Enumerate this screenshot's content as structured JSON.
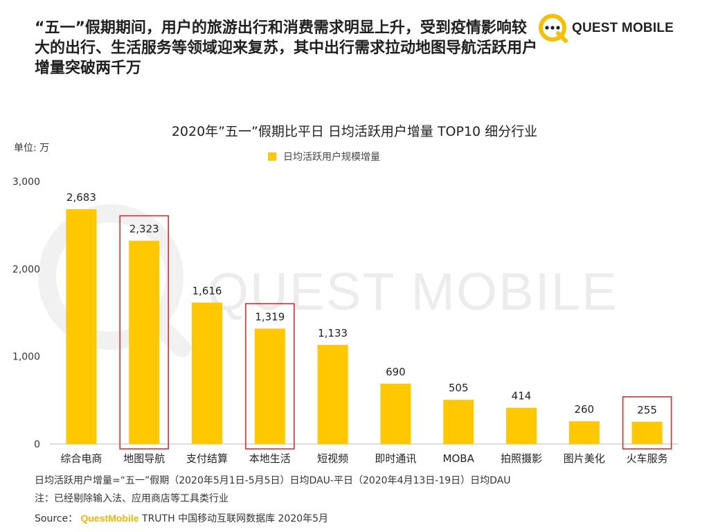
{
  "headline": "“五一”假期期间，用户的旅游出行和消费需求明显上升，受到疫情影响较大的出行、生活服务等领域迎来复苏，其中出行需求拉动地图导航活跃用户增量突破两千万",
  "logo": {
    "brand": "QUEST MOBILE"
  },
  "watermark": "QUEST MOBILE",
  "unit_label": "单位: 万",
  "footnotes": {
    "definition": "日均活跃用户增量=“五一”假期（2020年5月1日-5月5日）日均DAU-平日（2020年4月13日-19日）日均DAU",
    "note": "注：已经剔除输入法、应用商店等工具类行业",
    "source_prefix": "Source：",
    "source_brand": "QuestMobile",
    "source_rest": " TRUTH 中国移动互联网数据库 2020年5月"
  },
  "colors": {
    "bar": "#FFC800",
    "highlight_box": "#E02020",
    "axis": "#bbbbbb"
  },
  "chart_data": {
    "type": "bar",
    "title": "2020年”五一”假期比平日 日均活跃用户增量 TOP10 细分行业",
    "legend": [
      "日均活跃用户规模增量"
    ],
    "categories": [
      "综合电商",
      "地图导航",
      "支付结算",
      "本地生活",
      "短视频",
      "即时通讯",
      "MOBA",
      "拍照摄影",
      "图片美化",
      "火车服务"
    ],
    "values": [
      2683,
      2323,
      1616,
      1319,
      1133,
      690,
      505,
      414,
      260,
      255
    ],
    "value_labels": [
      "2,683",
      "2,323",
      "1,616",
      "1,319",
      "1,133",
      "690",
      "505",
      "414",
      "260",
      "255"
    ],
    "highlighted": [
      "地图导航",
      "本地生活",
      "火车服务"
    ],
    "ylim": [
      0,
      3000
    ],
    "yticks": [
      0,
      1000,
      2000,
      3000
    ],
    "ytick_labels": [
      "0",
      "1,000",
      "2,000",
      "3,000"
    ],
    "xlabel": "",
    "ylabel": "单位: 万",
    "grid": false
  }
}
